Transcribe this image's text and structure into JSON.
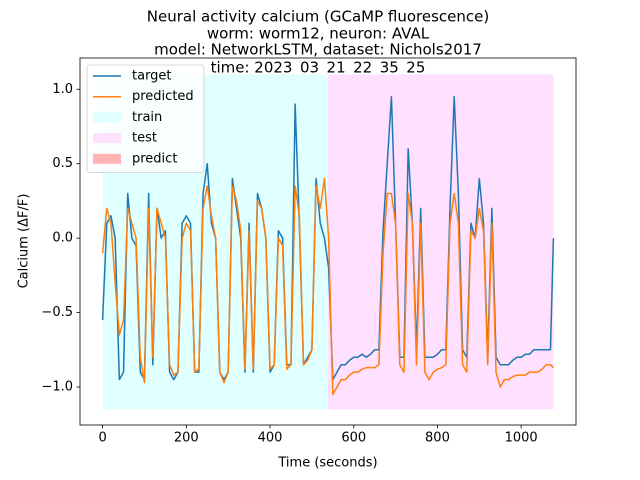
{
  "chart_data": {
    "type": "line",
    "title": [
      "Neural activity calcium (GCaMP fluorescence)",
      "worm: worm12, neuron: AVAL",
      "model: NetworkLSTM, dataset: Nichols2017",
      "time: 2023_03_21_22_35_25"
    ],
    "xlabel": "Time (seconds)",
    "ylabel": "Calcium (ΔF/F)",
    "x": [
      0,
      10,
      20,
      30,
      40,
      50,
      60,
      70,
      80,
      90,
      100,
      110,
      120,
      130,
      140,
      150,
      160,
      170,
      180,
      190,
      200,
      210,
      220,
      230,
      240,
      250,
      260,
      270,
      280,
      290,
      300,
      310,
      320,
      330,
      340,
      350,
      360,
      370,
      380,
      390,
      400,
      410,
      420,
      430,
      440,
      450,
      460,
      470,
      480,
      490,
      500,
      510,
      520,
      530,
      540,
      550,
      560,
      570,
      580,
      590,
      600,
      610,
      620,
      630,
      640,
      650,
      660,
      670,
      680,
      690,
      700,
      710,
      720,
      730,
      740,
      750,
      760,
      770,
      780,
      790,
      800,
      810,
      820,
      830,
      840,
      850,
      860,
      870,
      880,
      890,
      900,
      910,
      920,
      930,
      940,
      950,
      960,
      970,
      980,
      990,
      1000,
      1010,
      1020,
      1030,
      1040,
      1050,
      1060,
      1070,
      1077
    ],
    "series": [
      {
        "name": "target",
        "color": "#1f77b4",
        "values": [
          -0.55,
          0.1,
          0.15,
          0.0,
          -0.95,
          -0.9,
          0.3,
          0.0,
          -0.05,
          -0.9,
          -0.95,
          0.3,
          -0.85,
          0.2,
          0.0,
          0.05,
          -0.9,
          -0.95,
          -0.9,
          0.1,
          0.15,
          0.1,
          -0.9,
          -0.9,
          0.3,
          0.5,
          0.1,
          0.0,
          -0.9,
          -0.95,
          -0.9,
          0.4,
          0.2,
          0.0,
          -0.9,
          0.1,
          -0.9,
          0.3,
          0.2,
          0.0,
          -0.9,
          -0.85,
          0.05,
          0.0,
          -0.85,
          -0.85,
          0.9,
          0.1,
          -0.85,
          -0.8,
          -0.75,
          0.4,
          0.1,
          0.0,
          -0.2,
          -0.95,
          -0.9,
          -0.85,
          -0.85,
          -0.82,
          -0.8,
          -0.8,
          -0.78,
          -0.8,
          -0.78,
          -0.75,
          -0.75,
          0.05,
          0.5,
          0.95,
          0.1,
          -0.8,
          -0.8,
          0.6,
          0.1,
          -0.75,
          0.2,
          -0.8,
          -0.8,
          -0.8,
          -0.78,
          -0.75,
          -0.75,
          0.2,
          0.95,
          0.3,
          -0.75,
          -0.8,
          0.1,
          0.0,
          0.4,
          0.1,
          -0.8,
          0.2,
          -0.8,
          -0.85,
          -0.85,
          -0.85,
          -0.82,
          -0.8,
          -0.8,
          -0.78,
          -0.78,
          -0.75,
          -0.75,
          -0.75,
          -0.75,
          -0.75,
          0.0
        ]
      },
      {
        "name": "predicted",
        "color": "#ff7f0e",
        "values": [
          -0.1,
          0.2,
          0.1,
          -0.3,
          -0.65,
          -0.55,
          0.2,
          0.1,
          0.0,
          -0.8,
          -0.97,
          0.2,
          -0.8,
          0.2,
          0.1,
          0.0,
          -0.85,
          -0.92,
          -0.9,
          0.0,
          0.1,
          0.05,
          -0.9,
          -0.88,
          0.2,
          0.35,
          0.15,
          0.0,
          -0.9,
          -0.97,
          -0.9,
          0.35,
          0.25,
          0.05,
          -0.88,
          0.05,
          -0.88,
          0.25,
          0.2,
          0.0,
          -0.88,
          -0.85,
          0.0,
          -0.05,
          -0.88,
          -0.85,
          0.35,
          0.15,
          -0.85,
          -0.82,
          -0.75,
          0.35,
          0.2,
          0.4,
          0.0,
          -1.05,
          -1.0,
          -0.95,
          -0.95,
          -0.92,
          -0.9,
          -0.9,
          -0.88,
          -0.87,
          -0.87,
          -0.87,
          -0.85,
          -0.1,
          0.3,
          0.3,
          0.1,
          -0.85,
          -0.9,
          0.3,
          0.1,
          -0.85,
          0.1,
          -0.9,
          -0.95,
          -0.9,
          -0.88,
          -0.87,
          -0.85,
          0.1,
          0.3,
          0.1,
          -0.85,
          -0.9,
          0.05,
          0.0,
          0.2,
          0.05,
          -0.85,
          0.1,
          -0.9,
          -1.0,
          -0.95,
          -0.95,
          -0.93,
          -0.92,
          -0.92,
          -0.92,
          -0.9,
          -0.9,
          -0.9,
          -0.88,
          -0.85,
          -0.85,
          -0.87
        ]
      }
    ],
    "spans": [
      {
        "name": "train",
        "color": "#e0ffff",
        "x": [
          0,
          538
        ],
        "y": [
          -1.15,
          1.1
        ]
      },
      {
        "name": "test",
        "color": "#ffe0ff",
        "x": [
          538,
          1077
        ],
        "y": [
          -1.15,
          1.1
        ]
      },
      {
        "name": "predict",
        "color": "#ffb3b3"
      }
    ],
    "xlim": [
      -54,
      1131
    ],
    "ylim": [
      -1.255,
      1.21
    ],
    "xticks": [
      0,
      200,
      400,
      600,
      800,
      1000
    ],
    "yticks": [
      {
        "value": -1.0,
        "label": "−1.0"
      },
      {
        "value": -0.5,
        "label": "−0.5"
      },
      {
        "value": 0.0,
        "label": "0.0"
      },
      {
        "value": 0.5,
        "label": "0.5"
      },
      {
        "value": 1.0,
        "label": "1.0"
      }
    ],
    "legend": "upper left"
  }
}
